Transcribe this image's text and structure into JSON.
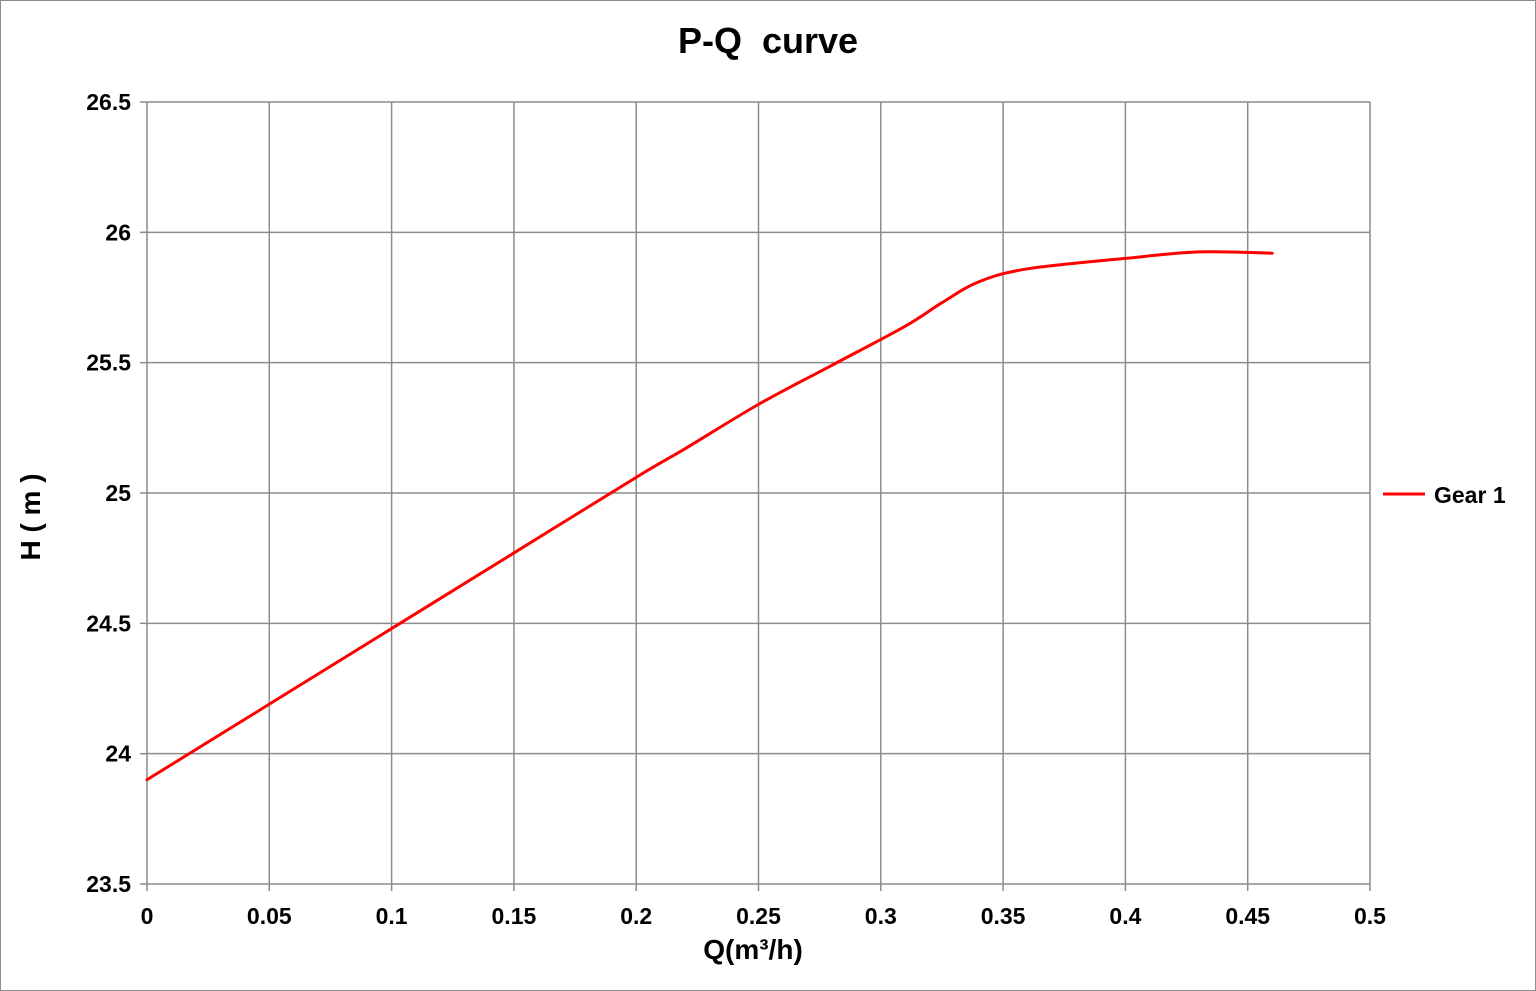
{
  "chart_data": {
    "type": "line",
    "title": "P-Q  curve",
    "xlabel": "Q(m³/h)",
    "ylabel": "H ( m )",
    "xlim": [
      0,
      0.5
    ],
    "ylim": [
      23.5,
      26.5
    ],
    "x_ticks": [
      "0",
      "0.05",
      "0.1",
      "0.15",
      "0.2",
      "0.25",
      "0.3",
      "0.35",
      "0.4",
      "0.45",
      "0.5"
    ],
    "y_ticks": [
      "23.5",
      "24",
      "24.5",
      "25",
      "25.5",
      "26",
      "26.5"
    ],
    "grid": true,
    "legend_position": "right",
    "colors": {
      "series": "#ff0000",
      "grid": "#8c8c8c",
      "axis": "#8c8c8c"
    },
    "series": [
      {
        "name": "Gear 1",
        "color": "#ff0000",
        "x": [
          0,
          0.05,
          0.1,
          0.15,
          0.2,
          0.22,
          0.25,
          0.28,
          0.31,
          0.325,
          0.34,
          0.36,
          0.4,
          0.43,
          0.46
        ],
        "y": [
          23.9,
          24.19,
          24.48,
          24.77,
          25.06,
          25.17,
          25.34,
          25.49,
          25.64,
          25.73,
          25.81,
          25.86,
          25.9,
          25.925,
          25.92
        ]
      }
    ]
  }
}
